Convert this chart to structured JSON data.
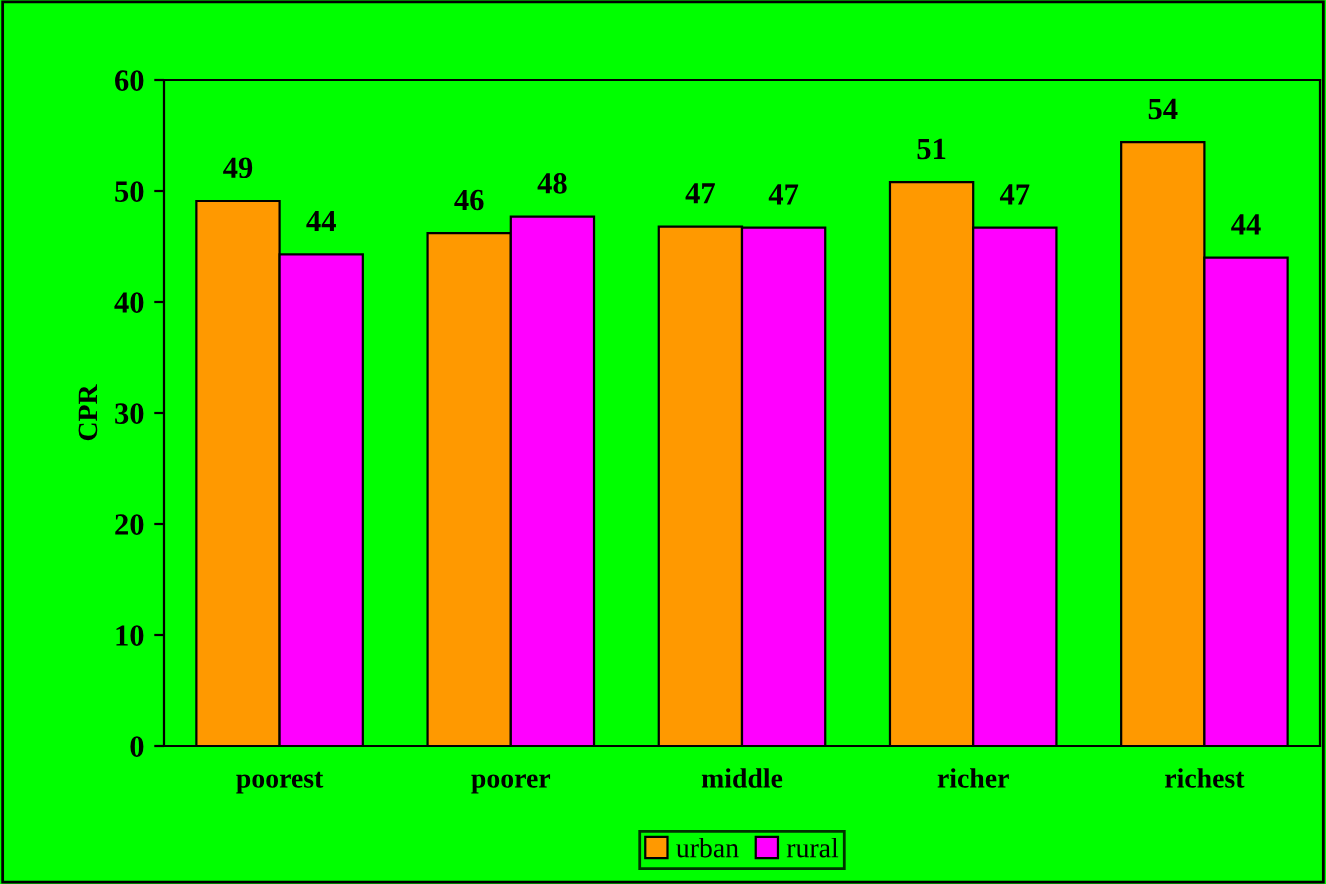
{
  "chart_data": {
    "type": "bar",
    "ylabel": "CPR",
    "categories": [
      "poorest",
      "poorer",
      "middle",
      "richer",
      "richest"
    ],
    "series": [
      {
        "name": "urban",
        "color": "#ff9900",
        "values": [
          49.1,
          46.2,
          46.8,
          50.8,
          54.4
        ],
        "value_labels": [
          "49",
          "46",
          "47",
          "51",
          "54"
        ]
      },
      {
        "name": "rural",
        "color": "#ff00ff",
        "values": [
          44.3,
          47.7,
          46.7,
          46.7,
          44.0
        ],
        "value_labels": [
          "44",
          "48",
          "47",
          "47",
          "44"
        ]
      }
    ],
    "ylim": [
      0,
      60
    ],
    "yticks": [
      0,
      10,
      20,
      30,
      40,
      50,
      60
    ],
    "grid": false,
    "legend": "bottom"
  }
}
